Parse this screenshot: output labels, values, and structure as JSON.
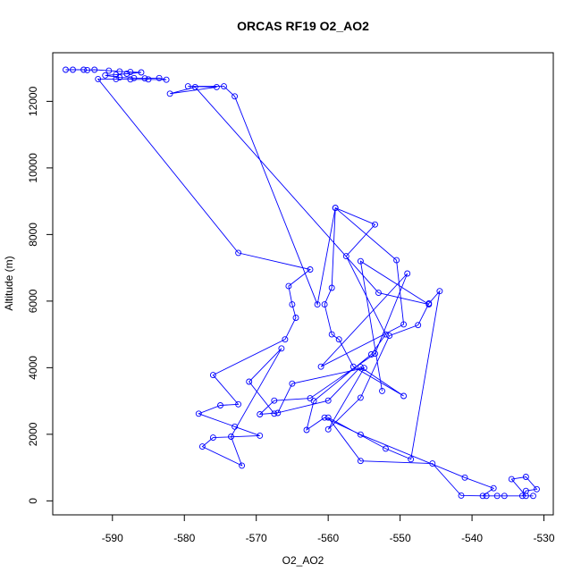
{
  "chart_data": {
    "type": "scatter",
    "title": "ORCAS RF19 O2_AO2",
    "xlabel": "O2_AO2",
    "ylabel": "Altitude (m)",
    "xlim": [
      -598.3,
      -528.7
    ],
    "ylim": [
      -420,
      13460
    ],
    "x_ticks": [
      -590,
      -580,
      -570,
      -560,
      -550,
      -540,
      -530
    ],
    "y_ticks": [
      0,
      2000,
      4000,
      6000,
      8000,
      10000,
      12000
    ],
    "x_tick_labels": [
      "-590",
      "-580",
      "-570",
      "-560",
      "-550",
      "-540",
      "-530"
    ],
    "y_tick_labels": [
      "0",
      "2000",
      "4000",
      "6000",
      "8000",
      "10000",
      "12000"
    ],
    "grid": false,
    "connected": true,
    "marker": "open-circle",
    "series_color": "#0000ff",
    "points": [
      [
        -596.5,
        12950
      ],
      [
        -595.5,
        12950
      ],
      [
        -594.0,
        12950
      ],
      [
        -593.5,
        12940
      ],
      [
        -592.5,
        12950
      ],
      [
        -590.5,
        12920
      ],
      [
        -589.0,
        12900
      ],
      [
        -587.5,
        12880
      ],
      [
        -586.0,
        12870
      ],
      [
        -588.0,
        12830
      ],
      [
        -589.5,
        12800
      ],
      [
        -591.0,
        12780
      ],
      [
        -589.0,
        12720
      ],
      [
        -587.0,
        12700
      ],
      [
        -585.5,
        12690
      ],
      [
        -583.5,
        12700
      ],
      [
        -582.5,
        12650
      ],
      [
        -585.0,
        12660
      ],
      [
        -587.5,
        12660
      ],
      [
        -589.5,
        12670
      ],
      [
        -592.0,
        12670
      ],
      [
        -572.5,
        7450
      ],
      [
        -562.5,
        6950
      ],
      [
        -565.5,
        6450
      ],
      [
        -565.0,
        5900
      ],
      [
        -564.5,
        5500
      ],
      [
        -566.0,
        4850
      ],
      [
        -576.0,
        3780
      ],
      [
        -572.5,
        2900
      ],
      [
        -575.0,
        2870
      ],
      [
        -578.0,
        2620
      ],
      [
        -573.0,
        2230
      ],
      [
        -569.5,
        1960
      ],
      [
        -576.0,
        1900
      ],
      [
        -577.5,
        1630
      ],
      [
        -572.0,
        1060
      ],
      [
        -573.5,
        1930
      ],
      [
        -566.5,
        4580
      ],
      [
        -571.0,
        3580
      ],
      [
        -567.5,
        2620
      ],
      [
        -560.0,
        3010
      ],
      [
        -555.5,
        4020
      ],
      [
        -549.5,
        3150
      ],
      [
        -556.5,
        4030
      ],
      [
        -558.5,
        4850
      ],
      [
        -559.5,
        5000
      ],
      [
        -560.5,
        5900
      ],
      [
        -559.5,
        6400
      ],
      [
        -559.0,
        8800
      ],
      [
        -553.5,
        8300
      ],
      [
        -557.5,
        7350
      ],
      [
        -552.0,
        5000
      ],
      [
        -554.0,
        4400
      ],
      [
        -562.0,
        3000
      ],
      [
        -563.0,
        2130
      ],
      [
        -560.5,
        2500
      ],
      [
        -555.5,
        1990
      ],
      [
        -541.0,
        700
      ],
      [
        -537.0,
        380
      ],
      [
        -538.5,
        150
      ],
      [
        -533.0,
        150
      ],
      [
        -532.5,
        300
      ],
      [
        -531.0,
        350
      ],
      [
        -532.5,
        720
      ],
      [
        -534.5,
        650
      ],
      [
        -532.5,
        150
      ],
      [
        -531.5,
        150
      ],
      [
        -535.5,
        150
      ],
      [
        -536.5,
        150
      ],
      [
        -538.0,
        150
      ],
      [
        -541.5,
        160
      ],
      [
        -545.5,
        1120
      ],
      [
        -555.5,
        1200
      ],
      [
        -560.0,
        2500
      ],
      [
        -552.0,
        1570
      ],
      [
        -548.5,
        1250
      ],
      [
        -544.5,
        6300
      ],
      [
        -546.0,
        5930
      ],
      [
        -547.5,
        5280
      ],
      [
        -551.5,
        4960
      ],
      [
        -555.5,
        3100
      ],
      [
        -560.0,
        2150
      ],
      [
        -555.0,
        3990
      ],
      [
        -565.0,
        3520
      ],
      [
        -567.0,
        2640
      ],
      [
        -569.5,
        2600
      ],
      [
        -567.5,
        3010
      ],
      [
        -562.5,
        3080
      ],
      [
        -553.5,
        4420
      ],
      [
        -549.0,
        6830
      ],
      [
        -561.0,
        4030
      ],
      [
        -549.5,
        5300
      ],
      [
        -550.5,
        7230
      ],
      [
        -559.0,
        8800
      ],
      [
        -561.5,
        5900
      ],
      [
        -573.0,
        12150
      ],
      [
        -574.5,
        12450
      ],
      [
        -579.5,
        12450
      ],
      [
        -575.5,
        12430
      ],
      [
        -582.0,
        12230
      ],
      [
        -578.5,
        12430
      ],
      [
        -553.0,
        6250
      ],
      [
        -546.0,
        5900
      ],
      [
        -555.5,
        7200
      ],
      [
        -552.5,
        3300
      ]
    ]
  }
}
